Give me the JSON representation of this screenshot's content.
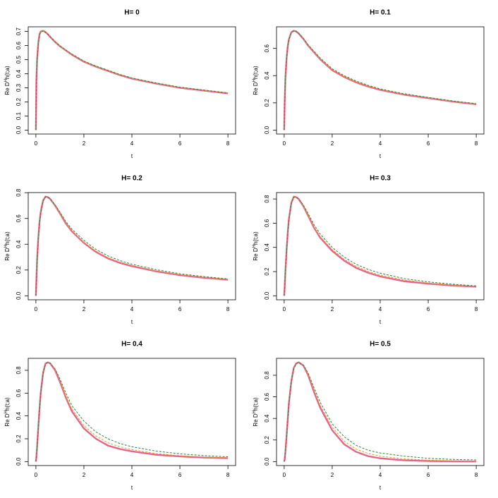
{
  "chart_data": [
    {
      "type": "line",
      "title": "H= 0",
      "xlabel": "t",
      "ylabel": [
        "Re D",
        "H",
        "h(t;a)"
      ],
      "x": [
        0,
        0.02,
        0.05,
        0.1,
        0.15,
        0.2,
        0.3,
        0.4,
        0.5,
        0.6,
        0.8,
        1,
        1.25,
        1.5,
        2,
        2.5,
        3,
        3.5,
        4,
        5,
        6,
        7,
        8
      ],
      "xlim": [
        -0.32,
        8.32
      ],
      "xticks": [
        0,
        2,
        4,
        6,
        8
      ],
      "ylim": [
        -0.028,
        0.733
      ],
      "yticks": [
        {
          "value": 0,
          "label": "0.0"
        },
        0.1,
        0.2,
        0.3,
        0.4,
        0.5,
        0.6,
        0.7
      ],
      "series": [
        {
          "color": "#e5658a",
          "linestyle": "solid",
          "values": [
            0,
            0.35,
            0.5,
            0.62,
            0.68,
            0.7,
            0.705,
            0.695,
            0.68,
            0.66,
            0.625,
            0.595,
            0.565,
            0.535,
            0.485,
            0.45,
            0.42,
            0.39,
            0.365,
            0.33,
            0.3,
            0.28,
            0.26
          ]
        },
        {
          "color": "#e0a020",
          "linestyle": "dashed",
          "values": [
            0,
            0.35,
            0.5,
            0.62,
            0.68,
            0.7,
            0.705,
            0.695,
            0.68,
            0.66,
            0.625,
            0.595,
            0.565,
            0.536,
            0.487,
            0.452,
            0.422,
            0.393,
            0.368,
            0.333,
            0.303,
            0.282,
            0.262
          ]
        },
        {
          "color": "#2e7d4f",
          "linestyle": "dashed",
          "values": [
            0,
            0.34,
            0.49,
            0.61,
            0.67,
            0.695,
            0.703,
            0.695,
            0.68,
            0.662,
            0.628,
            0.598,
            0.568,
            0.54,
            0.49,
            0.455,
            0.425,
            0.395,
            0.37,
            0.335,
            0.305,
            0.284,
            0.264
          ]
        }
      ]
    },
    {
      "type": "line",
      "title": "H= 0.1",
      "xlabel": "t",
      "ylabel": [
        "Re D",
        "H",
        "h(t;a)"
      ],
      "x": [
        0,
        0.02,
        0.05,
        0.1,
        0.15,
        0.2,
        0.3,
        0.4,
        0.5,
        0.6,
        0.8,
        1,
        1.25,
        1.5,
        2,
        2.5,
        3,
        3.5,
        4,
        5,
        6,
        7,
        8
      ],
      "xlim": [
        -0.32,
        8.32
      ],
      "xticks": [
        0,
        2,
        4,
        6,
        8
      ],
      "ylim": [
        -0.029,
        0.759
      ],
      "yticks": [
        {
          "value": 0,
          "label": "0.0"
        },
        0.2,
        0.4,
        0.6
      ],
      "series": [
        {
          "color": "#e5658a",
          "linestyle": "solid",
          "values": [
            0,
            0.2,
            0.38,
            0.53,
            0.62,
            0.67,
            0.72,
            0.73,
            0.725,
            0.71,
            0.67,
            0.62,
            0.57,
            0.52,
            0.44,
            0.39,
            0.35,
            0.32,
            0.295,
            0.26,
            0.235,
            0.21,
            0.19
          ]
        },
        {
          "color": "#e0a020",
          "linestyle": "dashed",
          "values": [
            0,
            0.2,
            0.38,
            0.53,
            0.62,
            0.67,
            0.72,
            0.73,
            0.725,
            0.71,
            0.67,
            0.621,
            0.572,
            0.523,
            0.444,
            0.394,
            0.354,
            0.324,
            0.299,
            0.263,
            0.238,
            0.212,
            0.192
          ]
        },
        {
          "color": "#2e7d4f",
          "linestyle": "dashed",
          "values": [
            0,
            0.19,
            0.37,
            0.52,
            0.61,
            0.665,
            0.715,
            0.728,
            0.725,
            0.712,
            0.674,
            0.626,
            0.578,
            0.53,
            0.45,
            0.4,
            0.36,
            0.329,
            0.303,
            0.267,
            0.24,
            0.215,
            0.194
          ]
        }
      ]
    },
    {
      "type": "line",
      "title": "H= 0.2",
      "xlabel": "t",
      "ylabel": [
        "Re D",
        "H",
        "h(t;a)"
      ],
      "x": [
        0,
        0.02,
        0.05,
        0.1,
        0.15,
        0.2,
        0.3,
        0.4,
        0.5,
        0.6,
        0.8,
        1,
        1.25,
        1.5,
        2,
        2.5,
        3,
        3.5,
        4,
        5,
        6,
        7,
        8
      ],
      "xlim": [
        -0.32,
        8.32
      ],
      "xticks": [
        0,
        2,
        4,
        6,
        8
      ],
      "ylim": [
        -0.031,
        0.801
      ],
      "yticks": [
        {
          "value": 0,
          "label": "0.0"
        },
        0.2,
        0.4,
        0.6,
        0.8
      ],
      "series": [
        {
          "color": "#e5658a",
          "linestyle": "solid",
          "values": [
            0,
            0.12,
            0.28,
            0.45,
            0.57,
            0.65,
            0.74,
            0.77,
            0.765,
            0.75,
            0.7,
            0.64,
            0.56,
            0.5,
            0.41,
            0.34,
            0.29,
            0.255,
            0.23,
            0.19,
            0.16,
            0.14,
            0.125
          ]
        },
        {
          "color": "#e0a020",
          "linestyle": "dashed",
          "values": [
            0,
            0.12,
            0.28,
            0.45,
            0.57,
            0.65,
            0.74,
            0.77,
            0.765,
            0.75,
            0.7,
            0.642,
            0.565,
            0.505,
            0.416,
            0.347,
            0.297,
            0.262,
            0.236,
            0.195,
            0.165,
            0.144,
            0.128
          ]
        },
        {
          "color": "#2e7d4f",
          "linestyle": "dashed",
          "values": [
            0,
            0.11,
            0.27,
            0.44,
            0.56,
            0.64,
            0.735,
            0.768,
            0.765,
            0.752,
            0.706,
            0.65,
            0.575,
            0.517,
            0.43,
            0.36,
            0.31,
            0.273,
            0.245,
            0.203,
            0.171,
            0.149,
            0.131
          ]
        }
      ]
    },
    {
      "type": "line",
      "title": "H= 0.3",
      "xlabel": "t",
      "ylabel": [
        "Re D",
        "H",
        "h(t;a)"
      ],
      "x": [
        0,
        0.02,
        0.05,
        0.1,
        0.15,
        0.2,
        0.3,
        0.4,
        0.5,
        0.6,
        0.8,
        1,
        1.25,
        1.5,
        2,
        2.5,
        3,
        3.5,
        4,
        5,
        6,
        7,
        8
      ],
      "xlim": [
        -0.32,
        8.32
      ],
      "xticks": [
        0,
        2,
        4,
        6,
        8
      ],
      "ylim": [
        -0.033,
        0.853
      ],
      "yticks": [
        {
          "value": 0,
          "label": "0.0"
        },
        0.2,
        0.4,
        0.6,
        0.8
      ],
      "series": [
        {
          "color": "#e5658a",
          "linestyle": "solid",
          "values": [
            0,
            0.07,
            0.2,
            0.38,
            0.53,
            0.64,
            0.77,
            0.82,
            0.815,
            0.8,
            0.74,
            0.66,
            0.56,
            0.48,
            0.37,
            0.29,
            0.23,
            0.19,
            0.16,
            0.12,
            0.1,
            0.085,
            0.075
          ]
        },
        {
          "color": "#e0a020",
          "linestyle": "dashed",
          "values": [
            0,
            0.07,
            0.2,
            0.38,
            0.53,
            0.64,
            0.77,
            0.82,
            0.815,
            0.8,
            0.742,
            0.665,
            0.568,
            0.49,
            0.382,
            0.302,
            0.243,
            0.202,
            0.172,
            0.13,
            0.106,
            0.09,
            0.078
          ]
        },
        {
          "color": "#2e7d4f",
          "linestyle": "dashed",
          "values": [
            0,
            0.06,
            0.19,
            0.37,
            0.52,
            0.63,
            0.765,
            0.815,
            0.815,
            0.802,
            0.75,
            0.678,
            0.585,
            0.51,
            0.4,
            0.32,
            0.26,
            0.218,
            0.187,
            0.142,
            0.115,
            0.096,
            0.082
          ]
        }
      ]
    },
    {
      "type": "line",
      "title": "H= 0.4",
      "xlabel": "t",
      "ylabel": [
        "Re D",
        "H",
        "h(t;a)"
      ],
      "x": [
        0,
        0.02,
        0.05,
        0.1,
        0.15,
        0.2,
        0.3,
        0.4,
        0.5,
        0.6,
        0.8,
        1,
        1.25,
        1.5,
        2,
        2.5,
        3,
        3.5,
        4,
        5,
        6,
        7,
        8
      ],
      "xlim": [
        -0.32,
        8.32
      ],
      "xticks": [
        0,
        2,
        4,
        6,
        8
      ],
      "ylim": [
        -0.035,
        0.905
      ],
      "yticks": [
        {
          "value": 0,
          "label": "0.0"
        },
        0.2,
        0.4,
        0.6,
        0.8
      ],
      "series": [
        {
          "color": "#e5658a",
          "linestyle": "solid",
          "values": [
            0,
            0.04,
            0.13,
            0.3,
            0.46,
            0.6,
            0.78,
            0.86,
            0.87,
            0.86,
            0.8,
            0.7,
            0.56,
            0.44,
            0.29,
            0.2,
            0.14,
            0.11,
            0.09,
            0.06,
            0.045,
            0.035,
            0.03
          ]
        },
        {
          "color": "#e0a020",
          "linestyle": "dashed",
          "values": [
            0,
            0.04,
            0.13,
            0.3,
            0.46,
            0.6,
            0.78,
            0.86,
            0.87,
            0.86,
            0.805,
            0.71,
            0.575,
            0.46,
            0.315,
            0.225,
            0.165,
            0.13,
            0.105,
            0.07,
            0.052,
            0.04,
            0.033
          ]
        },
        {
          "color": "#2e7d4f",
          "linestyle": "dashed",
          "values": [
            0,
            0.035,
            0.12,
            0.29,
            0.45,
            0.59,
            0.77,
            0.855,
            0.868,
            0.862,
            0.812,
            0.725,
            0.6,
            0.49,
            0.355,
            0.26,
            0.2,
            0.158,
            0.13,
            0.092,
            0.068,
            0.052,
            0.042
          ]
        }
      ]
    },
    {
      "type": "line",
      "title": "H= 0.5",
      "xlabel": "t",
      "ylabel": [
        "Re D",
        "H",
        "h(t;a)"
      ],
      "x": [
        0,
        0.02,
        0.05,
        0.1,
        0.15,
        0.2,
        0.3,
        0.4,
        0.5,
        0.6,
        0.8,
        1,
        1.25,
        1.5,
        2,
        2.5,
        3,
        3.5,
        4,
        5,
        6,
        7,
        8
      ],
      "xlim": [
        -0.32,
        8.32
      ],
      "xticks": [
        0,
        2,
        4,
        6,
        8
      ],
      "ylim": [
        -0.037,
        0.957
      ],
      "yticks": [
        {
          "value": 0,
          "label": "0.0"
        },
        0.2,
        0.4,
        0.6,
        0.8
      ],
      "series": [
        {
          "color": "#e5658a",
          "linestyle": "solid",
          "values": [
            0,
            0.02,
            0.09,
            0.24,
            0.4,
            0.55,
            0.75,
            0.87,
            0.91,
            0.92,
            0.89,
            0.8,
            0.64,
            0.5,
            0.29,
            0.16,
            0.09,
            0.05,
            0.03,
            0.012,
            0.005,
            0.002,
            0.001
          ]
        },
        {
          "color": "#e0a020",
          "linestyle": "dashed",
          "values": [
            0,
            0.02,
            0.09,
            0.24,
            0.4,
            0.55,
            0.75,
            0.87,
            0.91,
            0.92,
            0.893,
            0.81,
            0.66,
            0.52,
            0.32,
            0.19,
            0.115,
            0.075,
            0.05,
            0.025,
            0.013,
            0.008,
            0.005
          ]
        },
        {
          "color": "#2e7d4f",
          "linestyle": "dashed",
          "values": [
            0,
            0.015,
            0.08,
            0.23,
            0.39,
            0.54,
            0.74,
            0.86,
            0.905,
            0.918,
            0.895,
            0.82,
            0.68,
            0.55,
            0.35,
            0.23,
            0.15,
            0.105,
            0.08,
            0.05,
            0.03,
            0.02,
            0.015
          ]
        }
      ]
    }
  ]
}
